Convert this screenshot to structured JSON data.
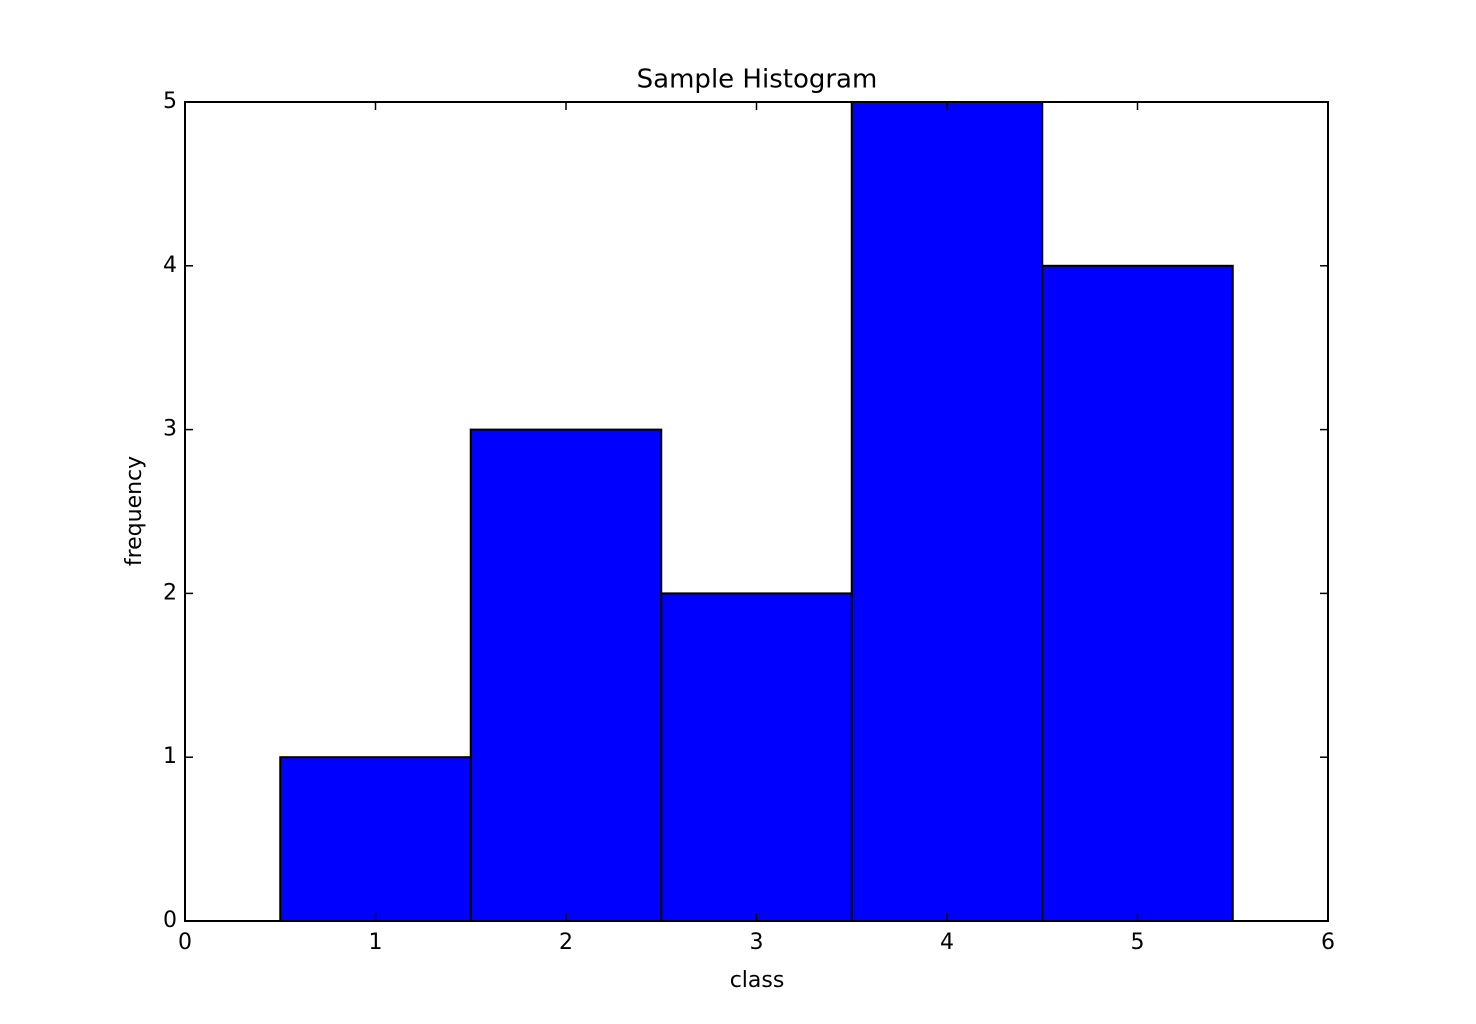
{
  "chart_data": {
    "type": "histogram",
    "title": "Sample Histogram",
    "x_label": "class",
    "y_label": "frequency",
    "bins": [
      0.5,
      1.5,
      2.5,
      3.5,
      4.5,
      5.5
    ],
    "counts": [
      1,
      3,
      2,
      5,
      4
    ],
    "color": "#0000ff",
    "edgecolor": "#000000",
    "xlim": [
      0,
      6
    ],
    "xticks": [
      0,
      1,
      2,
      3,
      4,
      5,
      6
    ],
    "ylim": [
      0,
      5
    ],
    "yticks": [
      0,
      1,
      2,
      3,
      4,
      5
    ],
    "grid": false
  }
}
